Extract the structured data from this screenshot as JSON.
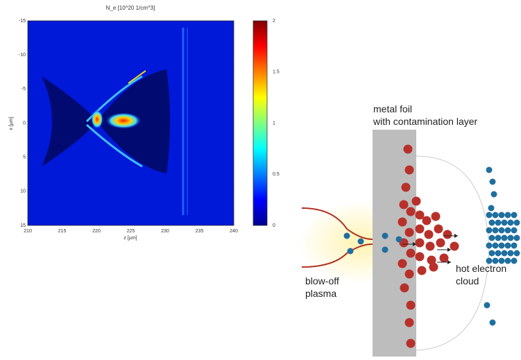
{
  "figure": {
    "heatmap": {
      "title": "N_e [10^20 1/cm^3]",
      "xlabel": "z [µm]",
      "ylabel": "x [µm]",
      "xticks": [
        210,
        215,
        220,
        225,
        230,
        235,
        240
      ],
      "yticks": [
        -15,
        -10,
        -5,
        0,
        5,
        10,
        15
      ],
      "colorbar_ticks": [
        0,
        0.5,
        1,
        1.5,
        2
      ]
    },
    "diagram": {
      "foil_label": "metal foil with contamination layer",
      "plasma_label": "blow-off plasma",
      "electron_label": "hot electron cloud"
    }
  }
}
